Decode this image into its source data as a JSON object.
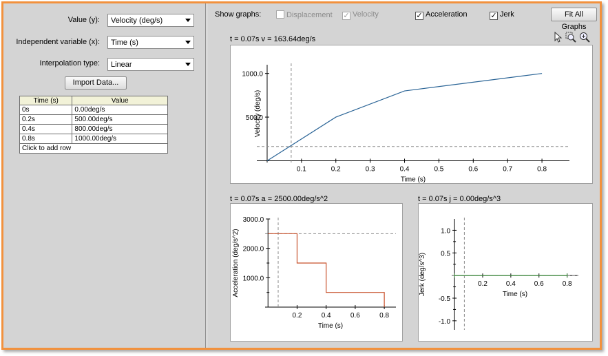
{
  "config": {
    "value_label": "Value (y):",
    "value_selected": "Velocity (deg/s)",
    "indep_label": "Independent variable (x):",
    "indep_selected": "Time (s)",
    "interp_label": "Interpolation type:",
    "interp_selected": "Linear",
    "import_button": "Import Data..."
  },
  "table": {
    "headers": [
      "Time (s)",
      "Value"
    ],
    "rows": [
      [
        "0s",
        "0.00deg/s"
      ],
      [
        "0.2s",
        "500.00deg/s"
      ],
      [
        "0.4s",
        "800.00deg/s"
      ],
      [
        "0.8s",
        "1000.00deg/s"
      ]
    ],
    "add_row": "Click to add row"
  },
  "show_graphs": {
    "label": "Show graphs:",
    "items": [
      {
        "label": "Displacement",
        "checked": false,
        "enabled": false
      },
      {
        "label": "Velocity",
        "checked": true,
        "enabled": false
      },
      {
        "label": "Acceleration",
        "checked": true,
        "enabled": true
      },
      {
        "label": "Jerk",
        "checked": true,
        "enabled": true
      }
    ],
    "fit_button": "Fit All Graphs"
  },
  "colors": {
    "frame": "#f2913d",
    "velocity_line": "#2a6496",
    "acceleration_line": "#c8502a",
    "jerk_line": "#3c8c3c"
  },
  "toolbar_icons": [
    "pointer-icon",
    "zoom-box-icon",
    "zoom-icon"
  ],
  "plots": {
    "velocity": {
      "header": "t = 0.07s  v = 163.64deg/s"
    },
    "acceleration": {
      "header": "t = 0.07s  a = 2500.00deg/s^2"
    },
    "jerk": {
      "header": "t = 0.07s  j = 0.00deg/s^3"
    }
  },
  "chart_data": [
    {
      "type": "line",
      "xlabel": "Time (s)",
      "ylabel": "Velocity (deg/s)",
      "x": [
        0,
        0.2,
        0.4,
        0.8
      ],
      "y": [
        0,
        500,
        800,
        1000
      ],
      "xticks": [
        "0.1",
        "0.2",
        "0.3",
        "0.4",
        "0.5",
        "0.6",
        "0.7",
        "0.8"
      ],
      "yticks": [
        "500.0",
        "1000.0"
      ],
      "xlim": [
        -0.03,
        0.88
      ],
      "ylim": [
        -20,
        1100
      ],
      "cursor": {
        "x": 0.07,
        "y": 163.64
      }
    },
    {
      "type": "line",
      "xlabel": "Time (s)",
      "ylabel": "Acceleration (deg/s^2)",
      "x": [
        0,
        0.2,
        0.2,
        0.4,
        0.4,
        0.8,
        0.8
      ],
      "y": [
        2500,
        2500,
        1500,
        1500,
        500,
        500,
        0
      ],
      "xticks": [
        "0.2",
        "0.4",
        "0.6",
        "0.8"
      ],
      "yticks": [
        "1000.0",
        "2000.0",
        "3000.0"
      ],
      "xlim": [
        -0.02,
        0.88
      ],
      "ylim": [
        0,
        3000
      ],
      "cursor": {
        "x": 0.07,
        "y": 2500
      }
    },
    {
      "type": "line",
      "xlabel": "Time (s)",
      "ylabel": "Jerk (deg/s^3)",
      "x": [
        0,
        0.8
      ],
      "y": [
        0,
        0
      ],
      "xticks": [
        "0.2",
        "0.4",
        "0.6",
        "0.8"
      ],
      "yticks": [
        "1.0",
        "0.5",
        "-0.5",
        "-1.0"
      ],
      "xlim": [
        -0.02,
        0.88
      ],
      "ylim": [
        -1.2,
        1.25
      ],
      "cursor": {
        "x": 0.07,
        "y": 0
      }
    }
  ]
}
